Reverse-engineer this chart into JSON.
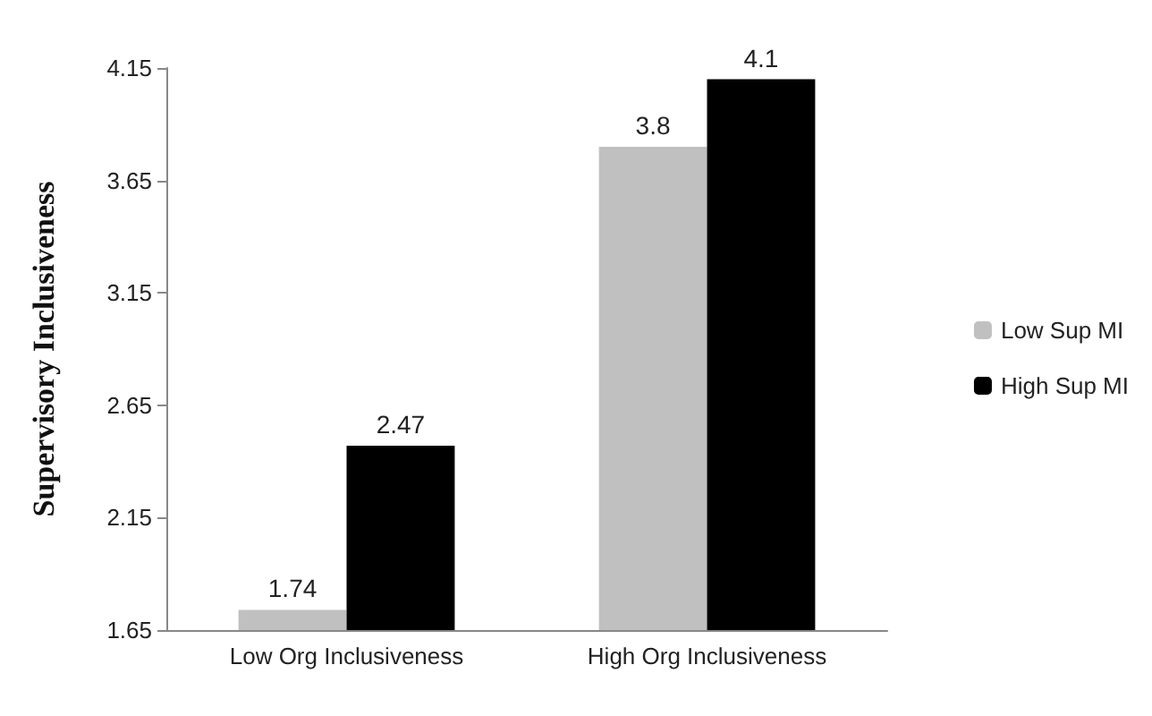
{
  "chart_data": {
    "type": "bar",
    "ylabel": "Supervisory Inclusiveness",
    "categories": [
      "Low Org Inclusiveness",
      "High Org Inclusiveness"
    ],
    "series": [
      {
        "name": "Low Sup MI",
        "color": "#c0c0c0",
        "values": [
          1.74,
          3.8
        ]
      },
      {
        "name": "High Sup MI",
        "color": "#000000",
        "values": [
          2.47,
          4.1
        ]
      }
    ],
    "ylim": [
      1.65,
      4.15
    ],
    "yticks": [
      1.65,
      2.15,
      2.65,
      3.15,
      3.65,
      4.15
    ],
    "data_labels": true,
    "grid": false,
    "legend": "right"
  }
}
